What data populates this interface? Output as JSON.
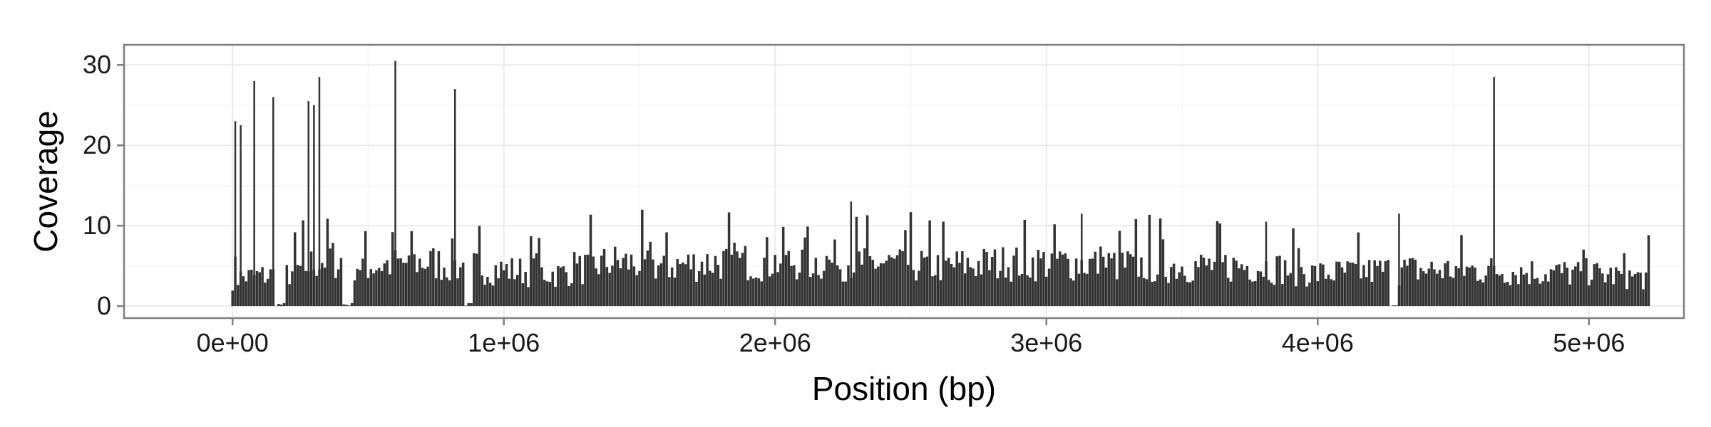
{
  "chart_data": {
    "type": "bar",
    "title": "",
    "xlabel": "Position (bp)",
    "ylabel": "Coverage",
    "xlim": [
      -400000,
      5350000
    ],
    "ylim": [
      -1.5,
      32.5
    ],
    "x_ticks": [
      {
        "value": 0,
        "label": "0e+00"
      },
      {
        "value": 1000000,
        "label": "1e+06"
      },
      {
        "value": 2000000,
        "label": "2e+06"
      },
      {
        "value": 3000000,
        "label": "3e+06"
      },
      {
        "value": 4000000,
        "label": "4e+06"
      },
      {
        "value": 5000000,
        "label": "5e+06"
      }
    ],
    "y_ticks": [
      {
        "value": 0,
        "label": "0"
      },
      {
        "value": 10,
        "label": "10"
      },
      {
        "value": 20,
        "label": "20"
      },
      {
        "value": 30,
        "label": "30"
      }
    ],
    "grid": true,
    "legend": "none",
    "colors": {
      "bars": "#333333",
      "panel_border": "#7f7f7f",
      "grid_major": "#ebebeb",
      "grid_minor": "#f5f5f5"
    },
    "x_start": 0,
    "x_step": 10000,
    "baseline_profile": [
      {
        "x": 0,
        "y": 3.5
      },
      {
        "x": 200000,
        "y": 4.0
      },
      {
        "x": 350000,
        "y": 6.0
      },
      {
        "x": 500000,
        "y": 5.0
      },
      {
        "x": 700000,
        "y": 5.5
      },
      {
        "x": 850000,
        "y": 5.0
      },
      {
        "x": 1000000,
        "y": 4.5
      },
      {
        "x": 1200000,
        "y": 4.0
      },
      {
        "x": 1400000,
        "y": 5.5
      },
      {
        "x": 1600000,
        "y": 5.0
      },
      {
        "x": 1800000,
        "y": 5.5
      },
      {
        "x": 2000000,
        "y": 5.5
      },
      {
        "x": 2300000,
        "y": 5.5
      },
      {
        "x": 2600000,
        "y": 5.0
      },
      {
        "x": 3000000,
        "y": 5.5
      },
      {
        "x": 3400000,
        "y": 5.0
      },
      {
        "x": 3800000,
        "y": 5.0
      },
      {
        "x": 4000000,
        "y": 4.0
      },
      {
        "x": 4300000,
        "y": 4.5
      },
      {
        "x": 4600000,
        "y": 4.5
      },
      {
        "x": 5000000,
        "y": 4.0
      },
      {
        "x": 5220000,
        "y": 3.5
      }
    ],
    "gaps": [
      [
        160000,
        190000
      ],
      [
        410000,
        440000
      ],
      [
        860000,
        880000
      ],
      [
        4270000,
        4290000
      ]
    ],
    "peaks": [
      {
        "x": 10000,
        "y": 23
      },
      {
        "x": 30000,
        "y": 22.5
      },
      {
        "x": 80000,
        "y": 28
      },
      {
        "x": 150000,
        "y": 26
      },
      {
        "x": 280000,
        "y": 25.5
      },
      {
        "x": 300000,
        "y": 25
      },
      {
        "x": 320000,
        "y": 28.5
      },
      {
        "x": 600000,
        "y": 30.5
      },
      {
        "x": 820000,
        "y": 27
      },
      {
        "x": 2280000,
        "y": 13
      },
      {
        "x": 3130000,
        "y": 11.5
      },
      {
        "x": 3810000,
        "y": 10.5
      },
      {
        "x": 4300000,
        "y": 11.5
      },
      {
        "x": 4650000,
        "y": 28.5
      }
    ],
    "x_end": 5220000
  }
}
